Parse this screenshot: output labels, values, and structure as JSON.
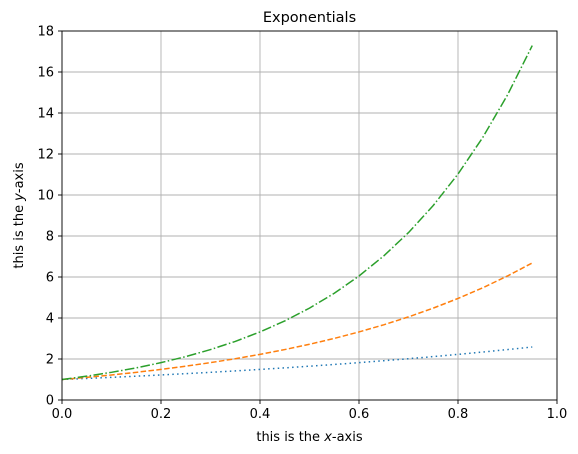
{
  "chart_data": {
    "type": "line",
    "title": "Exponentials",
    "xlabel": {
      "pre": "this is the ",
      "var": "x",
      "post": "-axis"
    },
    "ylabel": {
      "pre": "this is the ",
      "var": "y",
      "post": "-axis"
    },
    "xlim": [
      0.0,
      1.0
    ],
    "ylim": [
      0,
      18
    ],
    "xticks": [
      0.0,
      0.2,
      0.4,
      0.6,
      0.8,
      1.0
    ],
    "xtick_labels": [
      "0.0",
      "0.2",
      "0.4",
      "0.6",
      "0.8",
      "1.0"
    ],
    "yticks": [
      0,
      2,
      4,
      6,
      8,
      10,
      12,
      14,
      16,
      18
    ],
    "ytick_labels": [
      "0",
      "2",
      "4",
      "6",
      "8",
      "10",
      "12",
      "14",
      "16",
      "18"
    ],
    "grid": true,
    "x": [
      0.0,
      0.05,
      0.1,
      0.15,
      0.2,
      0.25,
      0.3,
      0.35,
      0.4,
      0.45,
      0.5,
      0.55,
      0.6,
      0.65,
      0.7,
      0.75,
      0.8,
      0.85,
      0.9,
      0.95
    ],
    "series": [
      {
        "color": "#1f77b4",
        "line_style": "dotted",
        "values": [
          1.0,
          1.051,
          1.105,
          1.162,
          1.221,
          1.284,
          1.35,
          1.419,
          1.492,
          1.568,
          1.649,
          1.733,
          1.822,
          1.916,
          2.014,
          2.117,
          2.226,
          2.34,
          2.46,
          2.586
        ]
      },
      {
        "color": "#ff7f0e",
        "line_style": "dashed",
        "values": [
          1.0,
          1.105,
          1.221,
          1.35,
          1.492,
          1.649,
          1.822,
          2.014,
          2.226,
          2.46,
          2.718,
          3.004,
          3.32,
          3.669,
          4.055,
          4.482,
          4.953,
          5.474,
          6.05,
          6.686
        ]
      },
      {
        "color": "#2ca02c",
        "line_style": "dashdot",
        "values": [
          1.0,
          1.162,
          1.35,
          1.568,
          1.822,
          2.117,
          2.46,
          2.858,
          3.32,
          3.857,
          4.482,
          5.207,
          6.05,
          7.029,
          8.166,
          9.488,
          11.023,
          12.807,
          14.88,
          17.288
        ]
      }
    ]
  }
}
